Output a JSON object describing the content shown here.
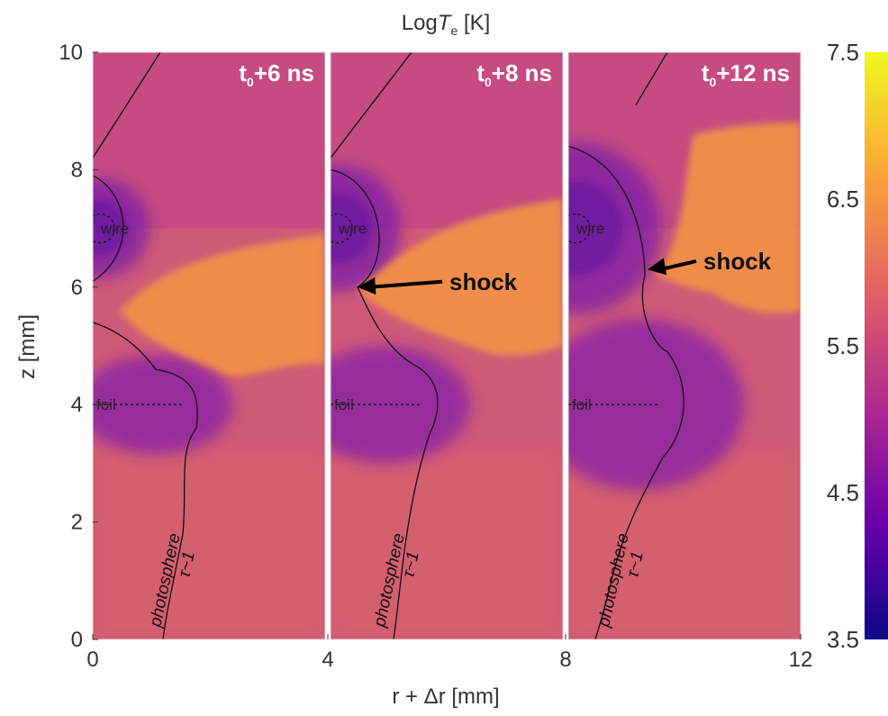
{
  "chart_data": {
    "type": "heatmap",
    "title_prefix": "Log",
    "title_var": "T",
    "title_sub": "e",
    "title_unit": " [K]",
    "xlabel": "r + Δr [mm]",
    "ylabel": "z [mm]",
    "xlim": [
      0,
      12
    ],
    "ylim": [
      0,
      10
    ],
    "x_ticks": [
      "0",
      "4",
      "8",
      "12"
    ],
    "y_ticks": [
      "0",
      "2",
      "4",
      "6",
      "8",
      "10"
    ],
    "colorbar": {
      "range": [
        3.5,
        7.5
      ],
      "ticks": [
        "3.5",
        "4.5",
        "5.5",
        "6.5",
        "7.5"
      ],
      "colors": [
        "#0d0887",
        "#6a00a8",
        "#b12a90",
        "#e16462",
        "#fca636",
        "#f0f921"
      ]
    },
    "panels": [
      {
        "t0": "t",
        "sub": "0",
        "rest": "+6 ns",
        "x_offset_mm": 0
      },
      {
        "t0": "t",
        "sub": "0",
        "rest": "+8 ns",
        "x_offset_mm": 4
      },
      {
        "t0": "t",
        "sub": "0",
        "rest": "+12 ns",
        "x_offset_mm": 8
      }
    ],
    "annotations": {
      "wire": "wire",
      "foil": "foil",
      "shock": "shock",
      "photosphere": "photosphere",
      "tau": "τ~1"
    },
    "approx_values": {
      "background_logTe": 5.5,
      "hot_region_logTe": 6.3,
      "wire_cold_region_logTe": 5.0,
      "wire_position_mm": {
        "r": 0.3,
        "z": 7.0
      },
      "foil_position_mm": {
        "z": 4.0
      }
    }
  }
}
